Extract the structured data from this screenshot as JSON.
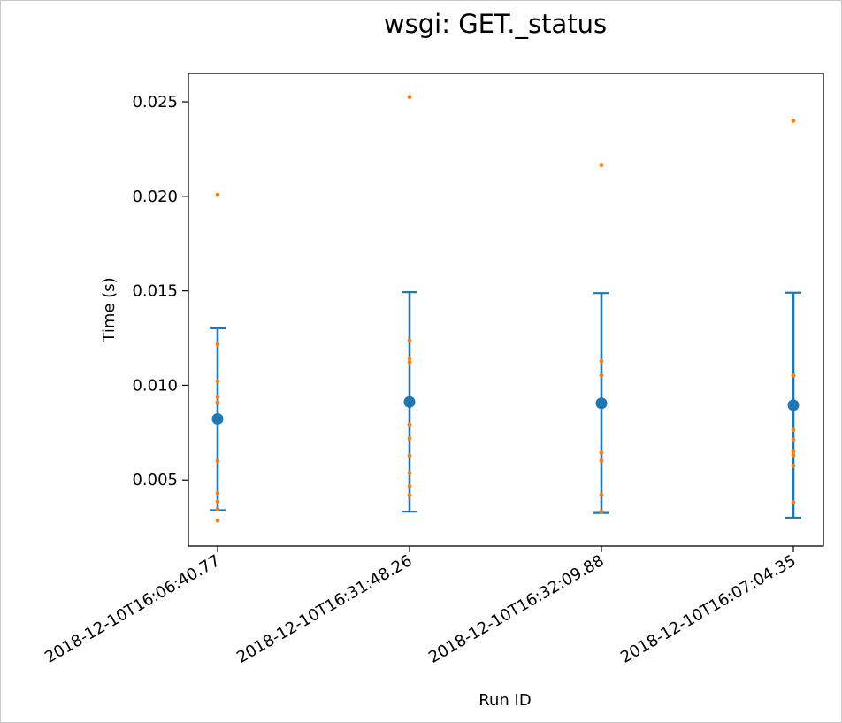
{
  "chart_data": {
    "type": "scatter",
    "title": "wsgi: GET._status",
    "xlabel": "Run ID",
    "ylabel": "Time (s)",
    "categories": [
      "2018-12-10T16:06:40.77",
      "2018-12-10T16:31:48.26",
      "2018-12-10T16:32:09.88",
      "2018-12-10T16:07:04.35"
    ],
    "ylim": [
      0.0015,
      0.0265
    ],
    "yticks": [
      0.005,
      0.01,
      0.015,
      0.02,
      0.025
    ],
    "ytick_labels": [
      "0.005",
      "0.010",
      "0.015",
      "0.020",
      "0.025"
    ],
    "grid": false,
    "legend": "none",
    "mean_series": {
      "color": "#1f77b4",
      "values": [
        0.00822,
        0.00912,
        0.00905,
        0.00895
      ],
      "error_low": [
        0.0034,
        0.00332,
        0.00325,
        0.003
      ],
      "error_high": [
        0.01302,
        0.01493,
        0.01488,
        0.0149
      ]
    },
    "sample_series": {
      "color": "#ff7f0e",
      "points": [
        [
          0.02008,
          0.01218,
          0.01021,
          0.0094,
          0.0091,
          0.006,
          0.0043,
          0.00385,
          0.00345,
          0.00285
        ],
        [
          0.02525,
          0.01237,
          0.01143,
          0.01122,
          0.00792,
          0.0072,
          0.00628,
          0.00536,
          0.00466,
          0.0042
        ],
        [
          0.02165,
          0.01128,
          0.01052,
          0.00644,
          0.006,
          0.00422,
          0.00332
        ],
        [
          0.024,
          0.01052,
          0.00765,
          0.00712,
          0.00652,
          0.0063,
          0.00575,
          0.00382
        ]
      ]
    }
  }
}
